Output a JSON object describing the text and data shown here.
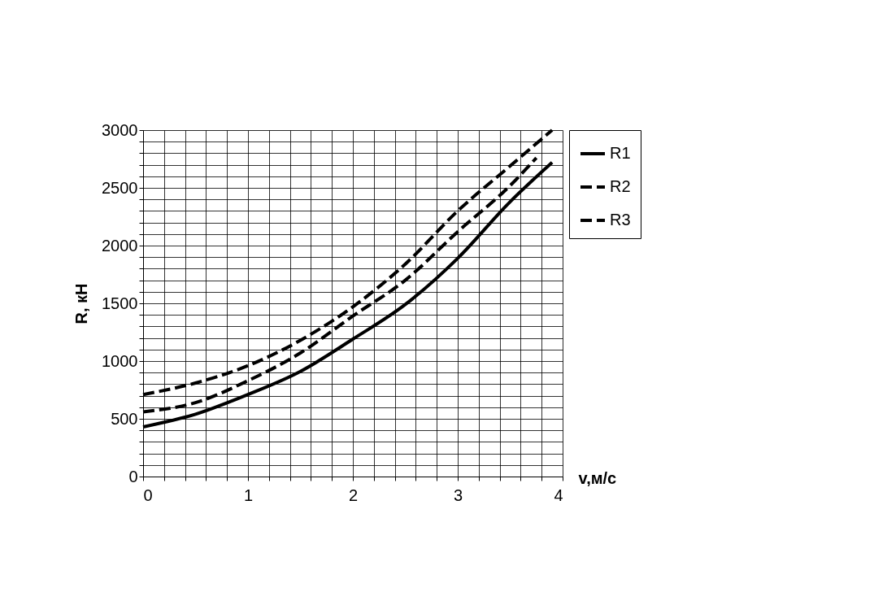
{
  "chart_data": {
    "type": "line",
    "xlabel": "v,м/с",
    "ylabel": "R, кН",
    "xlim": [
      0,
      4
    ],
    "ylim": [
      0,
      3000
    ],
    "xticks": [
      0,
      {
        "value": 0.2,
        "label": null
      },
      {
        "value": 0.4,
        "label": null
      },
      {
        "value": 0.6,
        "label": null
      },
      {
        "value": 0.8,
        "label": null
      },
      1,
      {
        "value": 1.2,
        "label": null
      },
      {
        "value": 1.4,
        "label": null
      },
      {
        "value": 1.6,
        "label": null
      },
      {
        "value": 1.8,
        "label": null
      },
      2,
      {
        "value": 2.2,
        "label": null
      },
      {
        "value": 2.4,
        "label": null
      },
      {
        "value": 2.6,
        "label": null
      },
      {
        "value": 2.8,
        "label": null
      },
      3,
      {
        "value": 3.2,
        "label": null
      },
      {
        "value": 3.4,
        "label": null
      },
      {
        "value": 3.6,
        "label": null
      },
      {
        "value": 3.8,
        "label": null
      },
      4
    ],
    "yticks": [
      0,
      {
        "value": 100,
        "label": null
      },
      {
        "value": 200,
        "label": null
      },
      {
        "value": 300,
        "label": null
      },
      {
        "value": 400,
        "label": null
      },
      500,
      {
        "value": 600,
        "label": null
      },
      {
        "value": 700,
        "label": null
      },
      {
        "value": 800,
        "label": null
      },
      {
        "value": 900,
        "label": null
      },
      1000,
      {
        "value": 1100,
        "label": null
      },
      {
        "value": 1200,
        "label": null
      },
      {
        "value": 1300,
        "label": null
      },
      {
        "value": 1400,
        "label": null
      },
      1500,
      {
        "value": 1600,
        "label": null
      },
      {
        "value": 1700,
        "label": null
      },
      {
        "value": 1800,
        "label": null
      },
      {
        "value": 1900,
        "label": null
      },
      2000,
      {
        "value": 2100,
        "label": null
      },
      {
        "value": 2200,
        "label": null
      },
      {
        "value": 2300,
        "label": null
      },
      {
        "value": 2400,
        "label": null
      },
      2500,
      {
        "value": 2600,
        "label": null
      },
      {
        "value": 2700,
        "label": null
      },
      {
        "value": 2800,
        "label": null
      },
      {
        "value": 2900,
        "label": null
      },
      3000
    ],
    "grid": true,
    "legend": "right",
    "series": [
      {
        "name": "R1",
        "color": "#000000",
        "line_style": "solid",
        "x": [
          0,
          0.5,
          1,
          1.5,
          2,
          2.5,
          3,
          3.5,
          3.9
        ],
        "values": [
          430,
          540,
          710,
          910,
          1190,
          1490,
          1890,
          2380,
          2720
        ]
      },
      {
        "name": "R2",
        "color": "#000000",
        "line_style": "dashed",
        "x": [
          0,
          0.5,
          1,
          1.5,
          2,
          2.5,
          3,
          3.5,
          3.75
        ],
        "values": [
          560,
          640,
          830,
          1070,
          1390,
          1700,
          2120,
          2520,
          2760
        ]
      },
      {
        "name": "R3",
        "color": "#000000",
        "line_style": "dashed",
        "x": [
          0,
          0.5,
          1,
          1.5,
          2,
          2.5,
          3,
          3.5,
          3.9
        ],
        "values": [
          710,
          810,
          960,
          1180,
          1470,
          1840,
          2300,
          2690,
          3000
        ]
      }
    ]
  }
}
